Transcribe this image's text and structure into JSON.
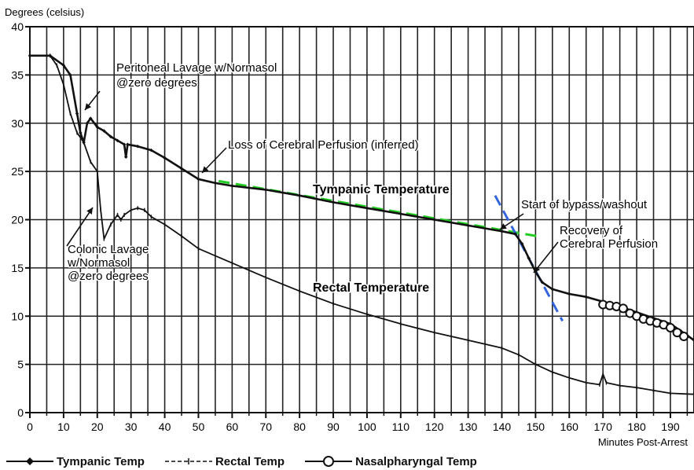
{
  "chart_data": {
    "type": "line",
    "ylabel": "Degrees (celsius)",
    "xlabel": "Minutes Post-Arrest",
    "xlim": [
      0,
      197
    ],
    "ylim": [
      0,
      40
    ],
    "x_ticks": [
      "0",
      "10",
      "20",
      "30",
      "40",
      "50",
      "60",
      "70",
      "80",
      "90",
      "100",
      "110",
      "120",
      "130",
      "140",
      "150",
      "160",
      "170",
      "180",
      "190"
    ],
    "y_ticks": [
      "0",
      "5",
      "10",
      "15",
      "20",
      "25",
      "30",
      "35",
      "40"
    ],
    "grid": true,
    "legend_position": "bottom",
    "series": [
      {
        "name": "Tympanic Temp",
        "color": "#111111",
        "marker": "diamond",
        "points": [
          [
            0,
            37
          ],
          [
            6,
            37
          ],
          [
            10,
            36
          ],
          [
            12,
            35
          ],
          [
            14,
            31
          ],
          [
            15,
            29
          ],
          [
            16,
            28
          ],
          [
            17,
            30
          ],
          [
            18,
            30.5
          ],
          [
            20,
            29.6
          ],
          [
            22,
            29.2
          ],
          [
            24,
            28.6
          ],
          [
            26,
            28.2
          ],
          [
            28,
            27.8
          ],
          [
            28.5,
            26.5
          ],
          [
            29,
            27.8
          ],
          [
            32,
            27.6
          ],
          [
            36,
            27.2
          ],
          [
            40,
            26.4
          ],
          [
            45,
            25.3
          ],
          [
            50,
            24.2
          ],
          [
            55,
            23.8
          ],
          [
            60,
            23.5
          ],
          [
            70,
            23.1
          ],
          [
            80,
            22.5
          ],
          [
            90,
            21.8
          ],
          [
            100,
            21.2
          ],
          [
            110,
            20.6
          ],
          [
            120,
            20.0
          ],
          [
            130,
            19.4
          ],
          [
            140,
            18.8
          ],
          [
            144,
            18.5
          ],
          [
            146,
            17.5
          ],
          [
            148,
            16.0
          ],
          [
            150,
            14.6
          ],
          [
            152,
            13.5
          ],
          [
            155,
            12.8
          ],
          [
            160,
            12.3
          ],
          [
            165,
            12.0
          ],
          [
            170,
            11.5
          ],
          [
            175,
            11.0
          ],
          [
            180,
            10.4
          ],
          [
            185,
            9.8
          ],
          [
            190,
            9.2
          ],
          [
            193,
            8.5
          ],
          [
            197,
            7.5
          ]
        ]
      },
      {
        "name": "Rectal Temp",
        "color": "#111111",
        "marker": "tick",
        "points": [
          [
            0,
            37
          ],
          [
            6,
            37
          ],
          [
            8,
            36
          ],
          [
            10,
            34
          ],
          [
            12,
            31
          ],
          [
            14,
            29
          ],
          [
            16,
            28
          ],
          [
            18,
            26
          ],
          [
            20,
            25
          ],
          [
            21,
            21
          ],
          [
            22,
            18
          ],
          [
            24,
            19.5
          ],
          [
            26,
            20.5
          ],
          [
            27,
            20
          ],
          [
            28,
            20.5
          ],
          [
            30,
            21
          ],
          [
            32,
            21.2
          ],
          [
            34,
            21
          ],
          [
            36,
            20.3
          ],
          [
            40,
            19.5
          ],
          [
            45,
            18.3
          ],
          [
            50,
            17.0
          ],
          [
            60,
            15.5
          ],
          [
            70,
            14.0
          ],
          [
            80,
            12.6
          ],
          [
            90,
            11.3
          ],
          [
            100,
            10.2
          ],
          [
            110,
            9.2
          ],
          [
            120,
            8.3
          ],
          [
            130,
            7.5
          ],
          [
            140,
            6.7
          ],
          [
            145,
            6.0
          ],
          [
            150,
            5.0
          ],
          [
            155,
            4.2
          ],
          [
            160,
            3.6
          ],
          [
            165,
            3.1
          ],
          [
            169,
            2.9
          ],
          [
            170,
            4.0
          ],
          [
            171,
            3.1
          ],
          [
            175,
            2.8
          ],
          [
            180,
            2.6
          ],
          [
            185,
            2.3
          ],
          [
            190,
            2.0
          ],
          [
            197,
            1.9
          ]
        ]
      },
      {
        "name": "Nasalpharyngal Temp",
        "color": "#111111",
        "marker": "circle",
        "points": [
          [
            170,
            11.2
          ],
          [
            172,
            11.1
          ],
          [
            174,
            11.0
          ],
          [
            176,
            10.8
          ],
          [
            178,
            10.3
          ],
          [
            180,
            10.0
          ],
          [
            182,
            9.7
          ],
          [
            184,
            9.5
          ],
          [
            186,
            9.3
          ],
          [
            188,
            9.1
          ],
          [
            190,
            8.8
          ],
          [
            192,
            8.3
          ],
          [
            194,
            7.9
          ]
        ]
      }
    ],
    "annotations": [
      {
        "lines": [
          "Peritoneal Lavage w/Normasol",
          "@zero degrees"
        ]
      },
      {
        "lines": [
          "Colonic Lavage",
          "w/Normasol",
          "@zero degrees"
        ]
      },
      {
        "lines": [
          "Loss of Cerebral Perfusion (inferred)"
        ]
      },
      {
        "lines": [
          "Tympanic Temperature"
        ]
      },
      {
        "lines": [
          "Rectal Temperature"
        ]
      },
      {
        "lines": [
          "Start of bypass/washout"
        ]
      },
      {
        "lines": [
          "Recovery of",
          "Cerebral Perfusion"
        ]
      }
    ],
    "trend_lines": [
      {
        "color": "#22cc22",
        "from": [
          56,
          24.0
        ],
        "to": [
          152,
          18.2
        ]
      },
      {
        "color": "#3366dd",
        "from": [
          138,
          22.5
        ],
        "to": [
          158,
          9.5
        ]
      }
    ]
  }
}
